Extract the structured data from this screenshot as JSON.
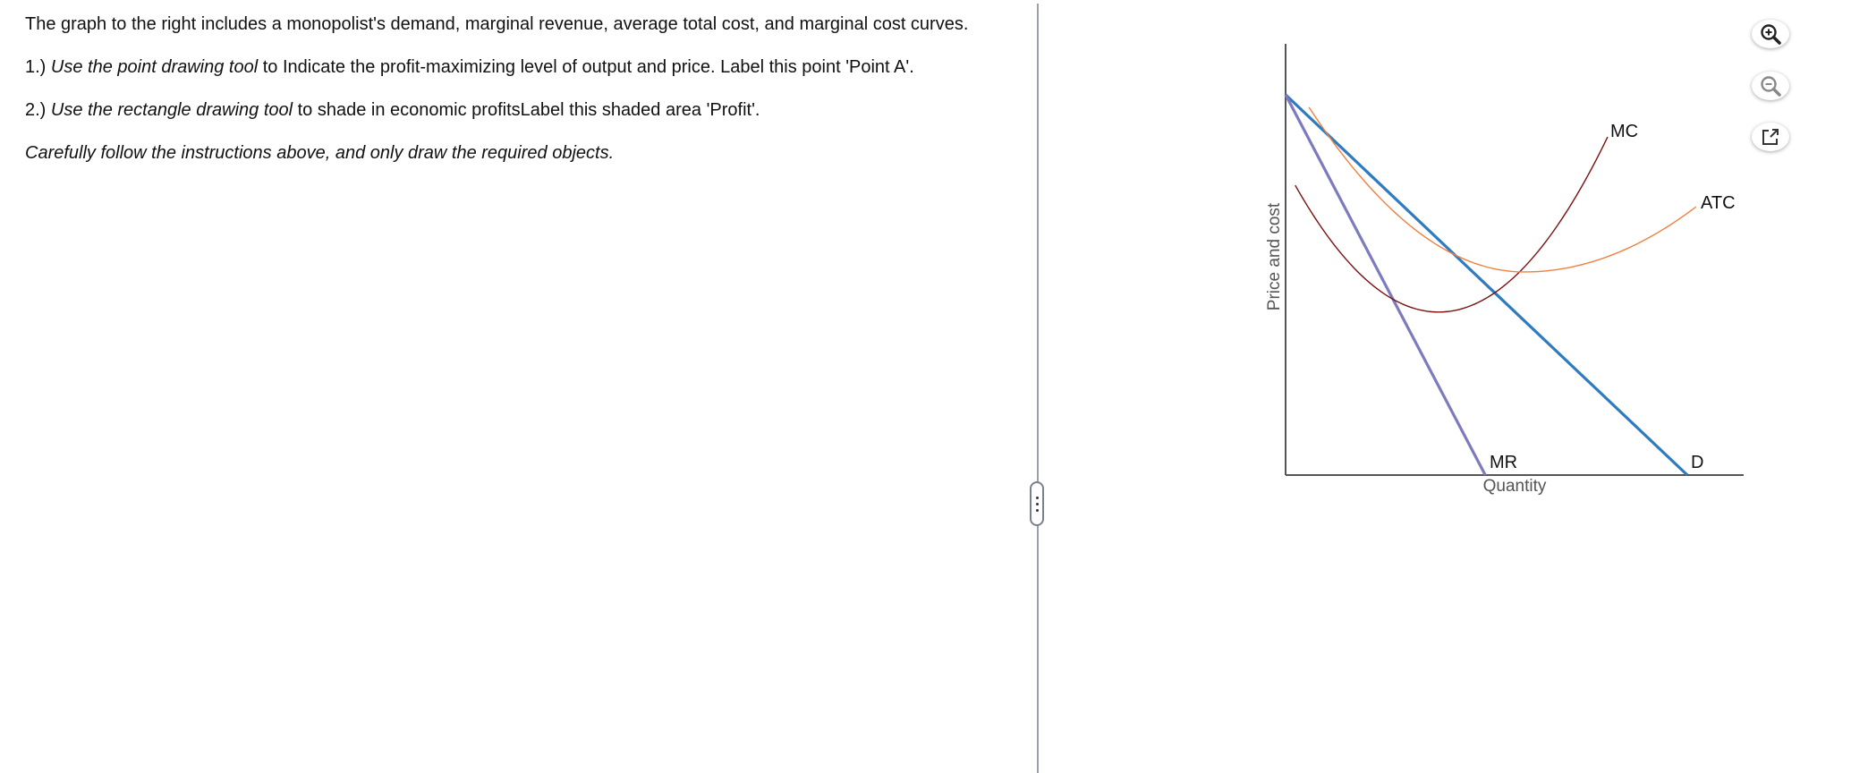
{
  "instructions": {
    "intro": "The graph to the right includes a monopolist's demand, marginal revenue, average total cost, and marginal cost curves.",
    "step1_prefix": "1.) ",
    "step1_italic": "Use the point drawing tool",
    "step1_rest": " to Indicate the profit-maximizing level of output and price. Label this point 'Point A'.",
    "step2_prefix": "2.) ",
    "step2_italic": "Use the rectangle drawing tool",
    "step2_rest": " to shade in economic profitsLabel this shaded area 'Profit'.",
    "note": "Carefully follow the instructions above, and only draw the required objects."
  },
  "toolbar": {
    "icons": [
      "zoom-in-icon",
      "zoom-out-icon",
      "pop-out-icon"
    ]
  },
  "chart_data": {
    "type": "line",
    "xlabel": "Quantity",
    "ylabel": "Price and cost",
    "ticks": "none",
    "grid": false,
    "series": [
      {
        "name": "D",
        "color": "#2e7bbf",
        "shape": "linear",
        "points": [
          [
            0,
            88.2
          ],
          [
            87.7,
            0
          ]
        ]
      },
      {
        "name": "MR",
        "color": "#7b7bbd",
        "shape": "linear",
        "points": [
          [
            0,
            88.2
          ],
          [
            43.6,
            0
          ]
        ]
      },
      {
        "name": "MC",
        "color": "#7a1010",
        "shape": "u-curve",
        "points": [
          [
            2.1,
            67.2
          ],
          [
            33.4,
            37.8
          ],
          [
            70.3,
            78.4
          ]
        ]
      },
      {
        "name": "ATC",
        "color": "#f08040",
        "shape": "u-curve",
        "points": [
          [
            5.1,
            85.3
          ],
          [
            52.1,
            47.1
          ],
          [
            89.6,
            62.2
          ]
        ]
      }
    ]
  }
}
